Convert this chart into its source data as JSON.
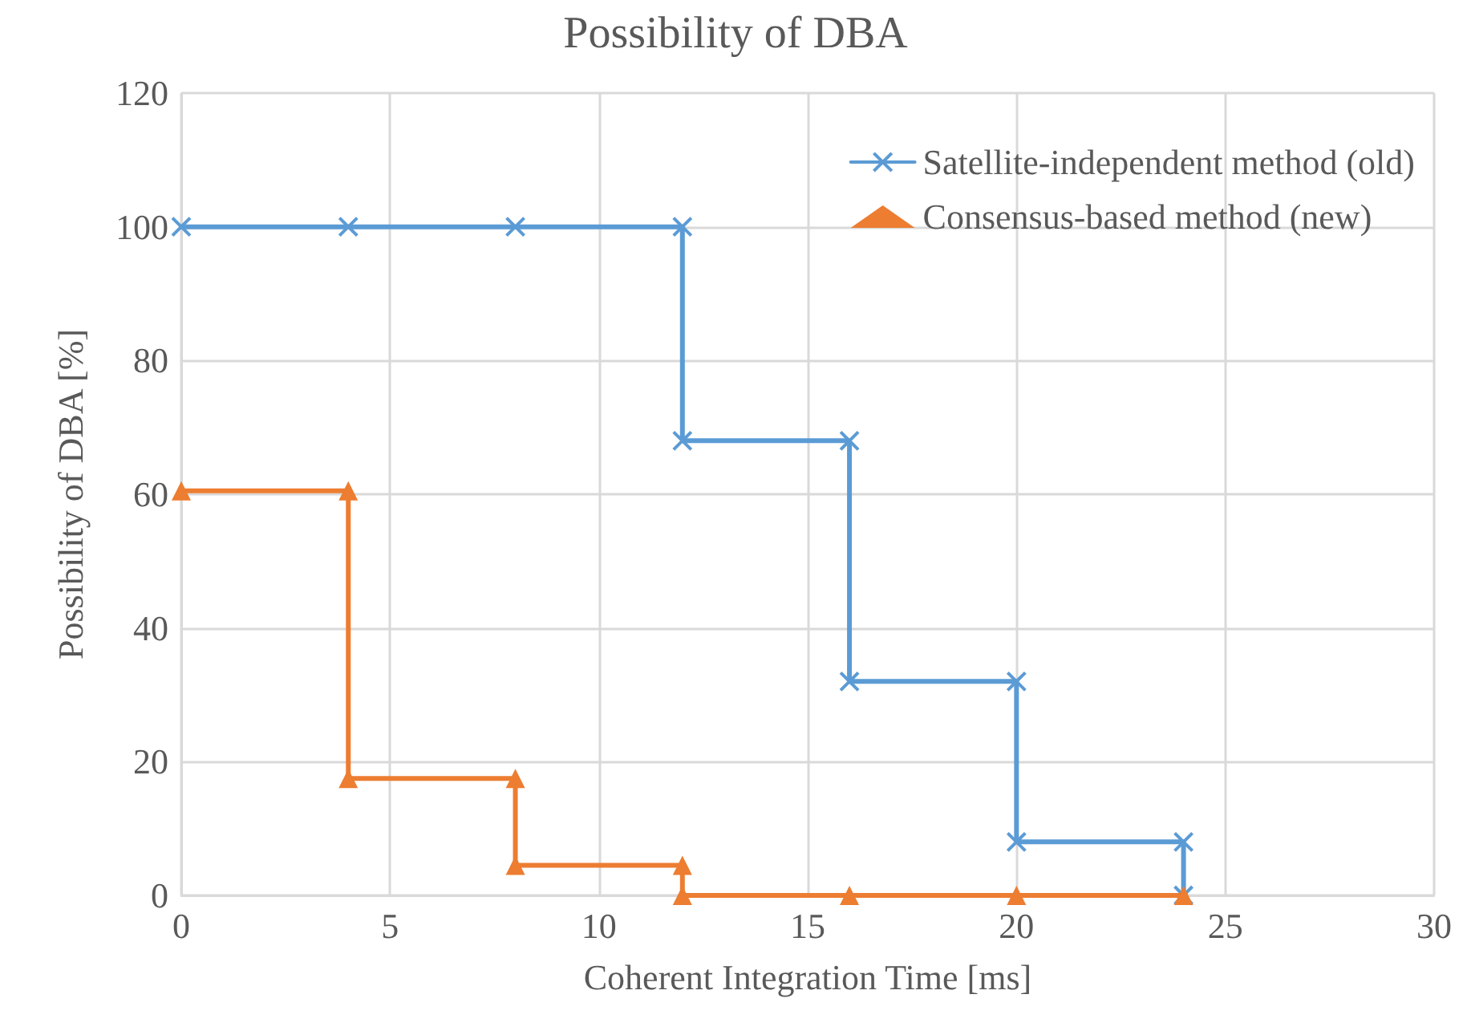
{
  "chart_data": {
    "type": "line",
    "title": "Possibility of DBA",
    "xlabel": "Coherent Integration Time [ms]",
    "ylabel": "Possibility of DBA [%]",
    "xlim": [
      0,
      30
    ],
    "xticks": [
      0,
      5,
      10,
      15,
      20,
      25,
      30
    ],
    "ylim": [
      0,
      120
    ],
    "yticks": [
      0,
      20,
      40,
      60,
      80,
      100,
      120
    ],
    "grid": true,
    "legend": "top right",
    "series": [
      {
        "name": "Satellite-independent method (old)",
        "color": "#5b9bd5",
        "marker": "cross",
        "x": [
          0,
          4,
          8,
          12,
          12,
          16,
          16,
          20,
          20,
          24,
          24
        ],
        "values": [
          100,
          100,
          100,
          100,
          68,
          68,
          32,
          32,
          8,
          8,
          0
        ]
      },
      {
        "name": "Consensus-based method (new)",
        "color": "#ed7d31",
        "marker": "triangle",
        "x": [
          0,
          4,
          4,
          8,
          8,
          12,
          12,
          16,
          20,
          24
        ],
        "values": [
          60.5,
          60.5,
          17.5,
          17.5,
          4.5,
          4.5,
          0,
          0,
          0,
          0
        ]
      }
    ]
  }
}
